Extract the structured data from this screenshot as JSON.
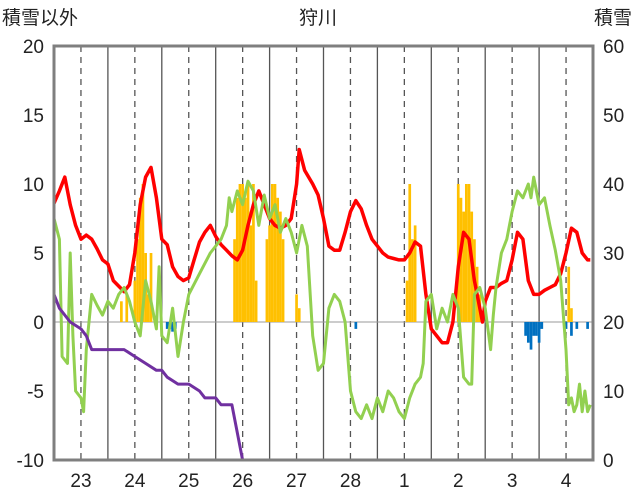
{
  "chart_data": {
    "type": "line",
    "title": "狩川",
    "left_axis_label": "積雪以外",
    "right_axis_label": "積雪",
    "ylim_left": [
      -10,
      20
    ],
    "ylim_right": [
      0,
      60
    ],
    "yticks_left": [
      "20",
      "15",
      "10",
      "5",
      "0",
      "-5",
      "-10"
    ],
    "yticks_right": [
      "60",
      "50",
      "40",
      "30",
      "20",
      "10",
      "0"
    ],
    "x_ticks": [
      "23",
      "24",
      "25",
      "26",
      "27",
      "28",
      "1",
      "2",
      "3",
      "4"
    ],
    "grid": "dashed vertical lines at day boundaries, solid vertical lines at noon",
    "colors": {
      "temperature": "#ff0000",
      "humidity_like": "#92d050",
      "snow_depth": "#7030a0",
      "precip_positive": "#ffc000",
      "precip_negative": "#0070c0",
      "frame": "#7f7f7f"
    },
    "series": [
      {
        "role": "temperature",
        "axis": "left",
        "points": [
          [
            22.5,
            8.6
          ],
          [
            22.6,
            9.5
          ],
          [
            22.7,
            10.5
          ],
          [
            22.8,
            8.5
          ],
          [
            22.9,
            7
          ],
          [
            23.0,
            6
          ],
          [
            23.1,
            6.3
          ],
          [
            23.2,
            6
          ],
          [
            23.3,
            5.3
          ],
          [
            23.4,
            4.5
          ],
          [
            23.5,
            4.2
          ],
          [
            23.6,
            3
          ],
          [
            23.7,
            2.6
          ],
          [
            23.8,
            2.2
          ],
          [
            23.9,
            2.7
          ],
          [
            24.0,
            5
          ],
          [
            24.1,
            8.5
          ],
          [
            24.2,
            10.5
          ],
          [
            24.3,
            11.2
          ],
          [
            24.4,
            9
          ],
          [
            24.5,
            6
          ],
          [
            24.6,
            5.6
          ],
          [
            24.7,
            4
          ],
          [
            24.8,
            3.3
          ],
          [
            24.9,
            3
          ],
          [
            25.0,
            3.2
          ],
          [
            25.1,
            4.5
          ],
          [
            25.2,
            5.8
          ],
          [
            25.3,
            6.5
          ],
          [
            25.4,
            7
          ],
          [
            25.5,
            6.2
          ],
          [
            25.6,
            5.6
          ],
          [
            25.7,
            5.2
          ],
          [
            25.8,
            4.8
          ],
          [
            25.9,
            4.5
          ],
          [
            26.0,
            5.2
          ],
          [
            26.1,
            7
          ],
          [
            26.2,
            8.5
          ],
          [
            26.3,
            9.5
          ],
          [
            26.4,
            8.5
          ],
          [
            26.5,
            7.5
          ],
          [
            26.6,
            7
          ],
          [
            26.7,
            6.8
          ],
          [
            26.8,
            7
          ],
          [
            26.9,
            7.5
          ],
          [
            27.0,
            10
          ],
          [
            27.05,
            12.5
          ],
          [
            27.15,
            11
          ],
          [
            27.3,
            10
          ],
          [
            27.4,
            9.2
          ],
          [
            27.5,
            7.5
          ],
          [
            27.6,
            5.5
          ],
          [
            27.7,
            5.2
          ],
          [
            27.8,
            5.2
          ],
          [
            27.9,
            6.5
          ],
          [
            28.0,
            8
          ],
          [
            28.1,
            8.8
          ],
          [
            28.2,
            8.2
          ],
          [
            28.3,
            7
          ],
          [
            28.4,
            6
          ],
          [
            28.5,
            5.5
          ],
          [
            28.6,
            5
          ],
          [
            28.7,
            4.7
          ],
          [
            28.8,
            4.6
          ],
          [
            28.9,
            4.5
          ],
          [
            29.0,
            4.5
          ],
          [
            29.1,
            5
          ],
          [
            29.2,
            5.8
          ],
          [
            29.3,
            5.5
          ],
          [
            29.4,
            2
          ],
          [
            29.5,
            -0.5
          ],
          [
            29.6,
            -1
          ],
          [
            29.7,
            -1.5
          ],
          [
            29.8,
            -1.5
          ],
          [
            29.9,
            0
          ],
          [
            30.0,
            4
          ],
          [
            30.1,
            6.5
          ],
          [
            30.2,
            6
          ],
          [
            30.3,
            3
          ],
          [
            30.4,
            1
          ],
          [
            30.45,
            0
          ],
          [
            30.5,
            1.5
          ],
          [
            30.6,
            2.5
          ],
          [
            30.7,
            2.5
          ],
          [
            30.8,
            2.8
          ],
          [
            30.9,
            3
          ],
          [
            31.0,
            4.5
          ],
          [
            31.1,
            6.5
          ],
          [
            31.2,
            6
          ],
          [
            31.3,
            3
          ],
          [
            31.4,
            2
          ],
          [
            31.5,
            2
          ],
          [
            31.6,
            2.3
          ],
          [
            31.7,
            2.5
          ],
          [
            31.8,
            2.7
          ],
          [
            31.9,
            3.5
          ],
          [
            32.0,
            5
          ],
          [
            32.1,
            6.8
          ],
          [
            32.2,
            6.5
          ],
          [
            32.3,
            5
          ],
          [
            32.4,
            4.5
          ],
          [
            32.45,
            4.5
          ]
        ]
      },
      {
        "role": "humidity_like",
        "axis": "left",
        "points": [
          [
            22.5,
            7.5
          ],
          [
            22.6,
            6
          ],
          [
            22.65,
            -2.5
          ],
          [
            22.75,
            -3
          ],
          [
            22.8,
            5
          ],
          [
            22.85,
            -1
          ],
          [
            22.9,
            -5
          ],
          [
            23.0,
            -5.5
          ],
          [
            23.05,
            -6.5
          ],
          [
            23.1,
            -2
          ],
          [
            23.2,
            2
          ],
          [
            23.3,
            1.2
          ],
          [
            23.4,
            0.5
          ],
          [
            23.5,
            1.5
          ],
          [
            23.6,
            1
          ],
          [
            23.7,
            2
          ],
          [
            23.8,
            2.5
          ],
          [
            23.9,
            1.5
          ],
          [
            24.0,
            0
          ],
          [
            24.1,
            -1
          ],
          [
            24.2,
            3
          ],
          [
            24.3,
            1.5
          ],
          [
            24.4,
            -0.5
          ],
          [
            24.45,
            4
          ],
          [
            24.5,
            -1
          ],
          [
            24.6,
            -1.5
          ],
          [
            24.7,
            1
          ],
          [
            24.8,
            -2.5
          ],
          [
            24.9,
            0
          ],
          [
            25.0,
            2
          ],
          [
            25.2,
            3.5
          ],
          [
            25.4,
            5
          ],
          [
            25.6,
            6
          ],
          [
            25.7,
            7
          ],
          [
            25.75,
            9
          ],
          [
            25.8,
            8
          ],
          [
            25.9,
            9.5
          ],
          [
            26.0,
            8.5
          ],
          [
            26.1,
            10.2
          ],
          [
            26.2,
            9.5
          ],
          [
            26.3,
            7
          ],
          [
            26.4,
            9.2
          ],
          [
            26.5,
            7.5
          ],
          [
            26.6,
            8.5
          ],
          [
            26.7,
            6.5
          ],
          [
            26.8,
            7.5
          ],
          [
            26.9,
            6.5
          ],
          [
            27.0,
            5
          ],
          [
            27.1,
            7
          ],
          [
            27.2,
            5.5
          ],
          [
            27.3,
            -1
          ],
          [
            27.4,
            -3.5
          ],
          [
            27.5,
            -3
          ],
          [
            27.6,
            1
          ],
          [
            27.7,
            2
          ],
          [
            27.8,
            1.5
          ],
          [
            27.9,
            0
          ],
          [
            28.0,
            -5
          ],
          [
            28.1,
            -6.5
          ],
          [
            28.2,
            -7
          ],
          [
            28.3,
            -6
          ],
          [
            28.4,
            -7
          ],
          [
            28.5,
            -5.5
          ],
          [
            28.6,
            -6.5
          ],
          [
            28.7,
            -5
          ],
          [
            28.8,
            -5.5
          ],
          [
            28.9,
            -6.5
          ],
          [
            29.0,
            -7
          ],
          [
            29.1,
            -5.5
          ],
          [
            29.2,
            -4.5
          ],
          [
            29.3,
            -4
          ],
          [
            29.35,
            -3
          ],
          [
            29.4,
            1.5
          ],
          [
            29.5,
            2
          ],
          [
            29.6,
            -0.5
          ],
          [
            29.7,
            1
          ],
          [
            29.8,
            0
          ],
          [
            29.9,
            2
          ],
          [
            30.0,
            1
          ],
          [
            30.1,
            -4
          ],
          [
            30.2,
            -4.5
          ],
          [
            30.25,
            -4.5
          ],
          [
            30.3,
            2
          ],
          [
            30.4,
            2.5
          ],
          [
            30.5,
            1
          ],
          [
            30.6,
            -2
          ],
          [
            30.65,
            0.5
          ],
          [
            30.7,
            2.5
          ],
          [
            30.8,
            5
          ],
          [
            30.9,
            6
          ],
          [
            31.0,
            8
          ],
          [
            31.1,
            9.5
          ],
          [
            31.2,
            9
          ],
          [
            31.3,
            10
          ],
          [
            31.35,
            9
          ],
          [
            31.4,
            10.5
          ],
          [
            31.5,
            8.5
          ],
          [
            31.6,
            9
          ],
          [
            31.7,
            7
          ],
          [
            31.8,
            5.2
          ],
          [
            31.9,
            3
          ],
          [
            32.0,
            -2
          ],
          [
            32.05,
            -6
          ],
          [
            32.1,
            -5.5
          ],
          [
            32.15,
            -6.5
          ],
          [
            32.2,
            -6
          ],
          [
            32.25,
            -4.5
          ],
          [
            32.3,
            -6.5
          ],
          [
            32.35,
            -5
          ],
          [
            32.4,
            -6.5
          ],
          [
            32.45,
            -6
          ]
        ]
      },
      {
        "role": "snow_depth",
        "axis": "right",
        "points": [
          [
            22.5,
            24
          ],
          [
            22.6,
            22
          ],
          [
            22.8,
            20
          ],
          [
            23.0,
            19
          ],
          [
            23.1,
            18
          ],
          [
            23.2,
            16
          ],
          [
            23.5,
            16
          ],
          [
            23.6,
            16
          ],
          [
            23.8,
            16
          ],
          [
            24.0,
            15
          ],
          [
            24.2,
            14
          ],
          [
            24.4,
            13
          ],
          [
            24.5,
            13
          ],
          [
            24.6,
            12
          ],
          [
            24.8,
            11
          ],
          [
            24.9,
            11
          ],
          [
            25.0,
            11
          ],
          [
            25.2,
            10
          ],
          [
            25.3,
            9
          ],
          [
            25.5,
            9
          ],
          [
            25.6,
            8
          ],
          [
            25.8,
            8
          ],
          [
            26.0,
            0
          ],
          [
            26.5,
            0
          ],
          [
            27.0,
            0
          ],
          [
            27.5,
            0
          ],
          [
            28.0,
            0
          ],
          [
            28.5,
            0
          ],
          [
            29.0,
            0
          ],
          [
            29.5,
            0
          ],
          [
            30.0,
            0
          ],
          [
            30.5,
            0
          ],
          [
            31.0,
            0
          ],
          [
            31.5,
            0
          ],
          [
            32.0,
            0
          ],
          [
            32.45,
            0
          ]
        ]
      }
    ],
    "bars": {
      "axis": "left",
      "values": [
        [
          23.75,
          1.5
        ],
        [
          23.85,
          2
        ],
        [
          24.0,
          3
        ],
        [
          24.05,
          6
        ],
        [
          24.1,
          9
        ],
        [
          24.15,
          10
        ],
        [
          24.2,
          5
        ],
        [
          24.25,
          2
        ],
        [
          24.3,
          5
        ],
        [
          24.6,
          -0.5
        ],
        [
          24.65,
          -0.5
        ],
        [
          24.7,
          -0.7
        ],
        [
          24.75,
          -0.5
        ],
        [
          25.85,
          6
        ],
        [
          25.9,
          9
        ],
        [
          25.95,
          10
        ],
        [
          26.0,
          10
        ],
        [
          26.05,
          9
        ],
        [
          26.1,
          10
        ],
        [
          26.15,
          7
        ],
        [
          26.2,
          10
        ],
        [
          26.25,
          3
        ],
        [
          26.45,
          6
        ],
        [
          26.5,
          7
        ],
        [
          26.55,
          10
        ],
        [
          26.6,
          10
        ],
        [
          26.65,
          9
        ],
        [
          26.7,
          8
        ],
        [
          26.75,
          6
        ],
        [
          27.0,
          2
        ],
        [
          27.05,
          1
        ],
        [
          28.1,
          -0.5
        ],
        [
          29.05,
          3
        ],
        [
          29.1,
          10
        ],
        [
          29.15,
          6
        ],
        [
          29.2,
          7
        ],
        [
          30.0,
          10
        ],
        [
          30.05,
          9
        ],
        [
          30.1,
          8
        ],
        [
          30.15,
          10
        ],
        [
          30.2,
          10
        ],
        [
          30.25,
          8
        ],
        [
          30.3,
          6
        ],
        [
          30.35,
          4
        ],
        [
          30.4,
          2
        ],
        [
          31.25,
          -1
        ],
        [
          31.3,
          -1.5
        ],
        [
          31.35,
          -2
        ],
        [
          31.4,
          -1
        ],
        [
          31.45,
          -1
        ],
        [
          31.5,
          -1.5
        ],
        [
          31.55,
          -0.5
        ],
        [
          32.0,
          -0.5
        ],
        [
          32.1,
          -1
        ],
        [
          32.2,
          -0.5
        ],
        [
          32.05,
          4
        ],
        [
          32.1,
          1
        ],
        [
          32.4,
          -0.5
        ]
      ]
    }
  }
}
